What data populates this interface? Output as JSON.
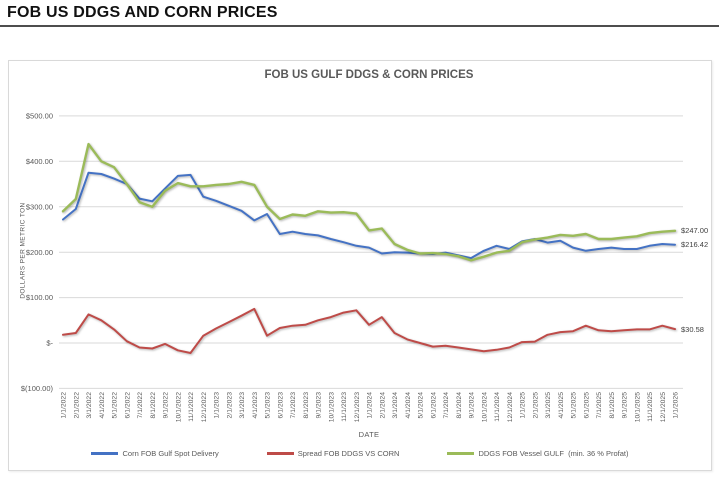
{
  "page": {
    "title": "FOB US DDGS AND CORN PRICES"
  },
  "chart": {
    "frame_border_color": "#d9d9d9",
    "gridline_color": "#d9d9d9",
    "axis_text_color": "#595959"
  },
  "chart_data": {
    "type": "line",
    "title": "FOB US GULF DDGS & CORN PRICES",
    "xlabel": "DATE",
    "ylabel": "DOLLARS PER METRIC TON",
    "ylim": [
      -100,
      500
    ],
    "grid": true,
    "legend_position": "bottom",
    "y_ticks": {
      "values": [
        500,
        400,
        300,
        200,
        100,
        0,
        -100
      ],
      "labels": [
        "$500.00",
        "$400.00",
        "$300.00",
        "$200.00",
        "$100.00",
        "$-",
        "$(100.00)"
      ]
    },
    "x_tick_labels": [
      "1/1/2022",
      "2/1/2022",
      "3/1/2022",
      "4/1/2022",
      "5/1/2022",
      "6/1/2022",
      "7/1/2022",
      "8/1/2022",
      "9/1/2022",
      "10/1/2022",
      "11/1/2022",
      "12/1/2022",
      "1/1/2023",
      "2/1/2023",
      "3/1/2023",
      "4/1/2023",
      "5/1/2023",
      "6/1/2023",
      "7/1/2023",
      "8/1/2023",
      "9/1/2023",
      "10/1/2023",
      "11/1/2023",
      "12/1/2023",
      "1/1/2024",
      "2/1/2024",
      "3/1/2024",
      "4/1/2024",
      "5/1/2024",
      "6/1/2024",
      "7/1/2024",
      "8/1/2024",
      "9/1/2024",
      "10/1/2024",
      "11/1/2024",
      "12/1/2024",
      "1/1/2025",
      "2/1/2025",
      "3/1/2025",
      "4/1/2025",
      "5/1/2025",
      "6/1/2025",
      "7/1/2025",
      "8/1/2025",
      "9/1/2025",
      "10/1/2025",
      "11/1/2025",
      "12/1/2025",
      "1/1/2026"
    ],
    "series": [
      {
        "key": "corn",
        "name": "Corn FOB Gulf Spot Delivery",
        "color": "#4472C4",
        "width": 2,
        "end_label": "$216.42",
        "values": [
          272,
          295,
          375,
          372,
          362,
          350,
          318,
          312,
          340,
          368,
          370,
          322,
          313,
          302,
          291,
          270,
          284,
          240,
          245,
          240,
          237,
          229,
          222,
          214,
          210,
          197,
          200,
          199,
          197,
          196,
          199,
          193,
          187,
          203,
          214,
          207,
          224,
          229,
          221,
          225,
          210,
          203,
          207,
          210,
          207,
          207,
          214,
          218,
          216.42
        ]
      },
      {
        "key": "spread",
        "name": "Spread FOB DDGS VS CORN",
        "color": "#BE4B48",
        "width": 2,
        "end_label": "$30.58",
        "values": [
          18,
          22,
          63,
          50,
          30,
          4,
          -10,
          -12,
          -2,
          -16,
          -22,
          16,
          32,
          46,
          60,
          75,
          16,
          33,
          38,
          40,
          50,
          57,
          67,
          72,
          40,
          57,
          22,
          8,
          0,
          -8,
          -6,
          -10,
          -14,
          -18,
          -15,
          -10,
          2,
          3,
          18,
          24,
          26,
          38,
          28,
          26,
          28,
          30,
          30,
          38,
          30.58
        ]
      },
      {
        "key": "ddgs",
        "name": "DDGS FOB Vessel GULF  (min. 36 % Profat)",
        "color": "#9BBB59",
        "width": 2.4,
        "end_label": "$247.00",
        "values": [
          290,
          317,
          438,
          400,
          387,
          350,
          310,
          300,
          335,
          352,
          345,
          345,
          348,
          350,
          355,
          348,
          300,
          273,
          283,
          280,
          290,
          287,
          288,
          285,
          248,
          252,
          218,
          205,
          197,
          198,
          196,
          191,
          182,
          190,
          199,
          203,
          222,
          228,
          232,
          238,
          236,
          240,
          229,
          229,
          232,
          235,
          242,
          245,
          247
        ]
      }
    ]
  }
}
